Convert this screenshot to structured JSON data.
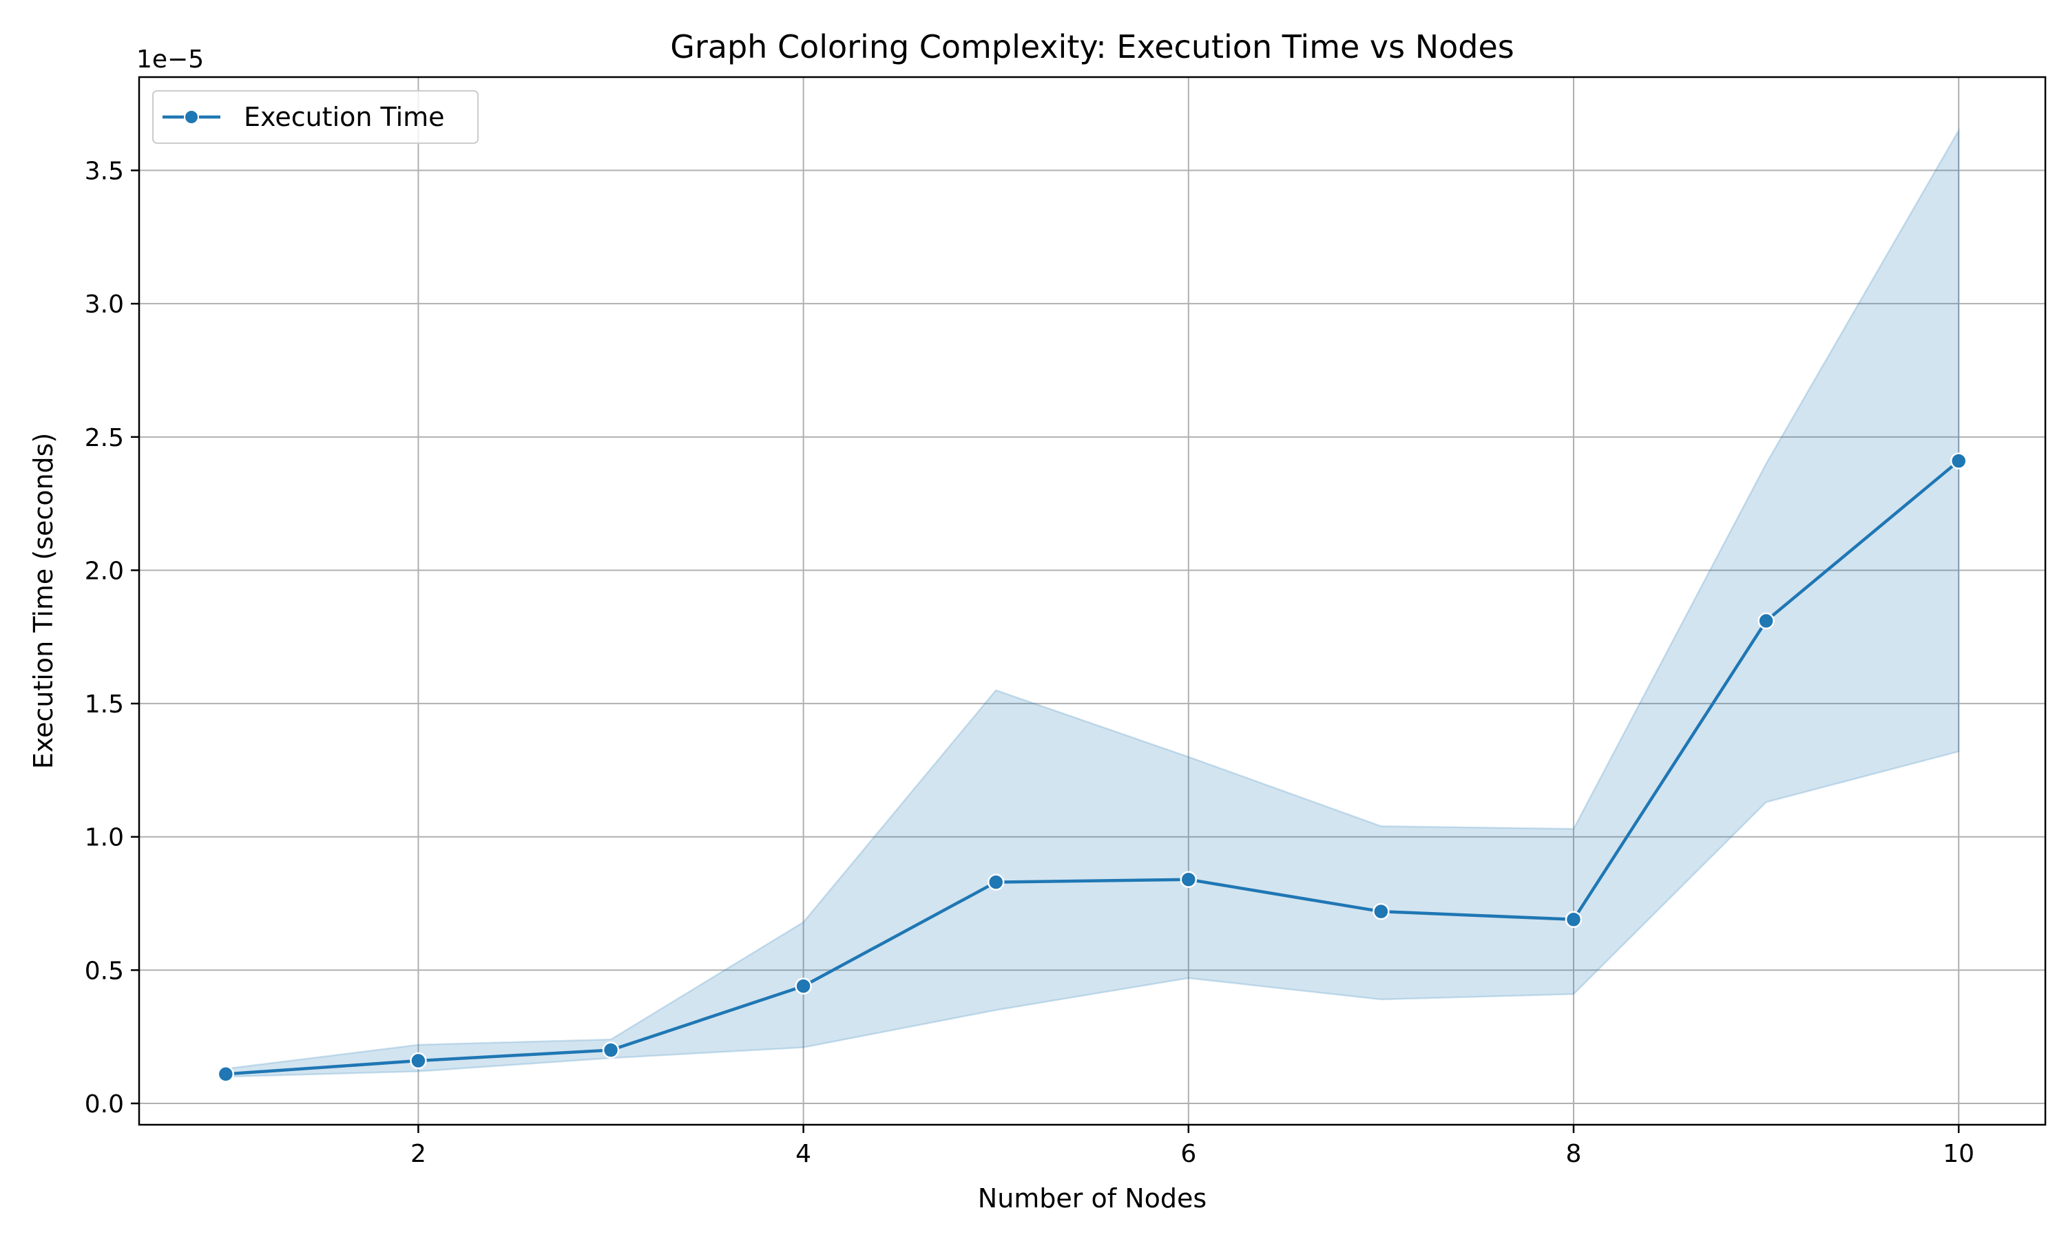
{
  "chart_data": {
    "type": "line",
    "title": "Graph Coloring Complexity: Execution Time vs Nodes",
    "xlabel": "Number of Nodes",
    "ylabel": "Execution Time (seconds)",
    "y_offset_label": "1e−5",
    "x_ticks": [
      2,
      4,
      6,
      8,
      10
    ],
    "x_tick_labels": [
      "2",
      "4",
      "6",
      "8",
      "10"
    ],
    "y_ticks": [
      0.0,
      0.5,
      1.0,
      1.5,
      2.0,
      2.5,
      3.0,
      3.5
    ],
    "y_tick_labels": [
      "0.0",
      "0.5",
      "1.0",
      "1.5",
      "2.0",
      "2.5",
      "3.0",
      "3.5"
    ],
    "xlim": [
      0.55,
      10.45
    ],
    "ylim": [
      -0.08,
      3.85
    ],
    "y_scale_note": "values shown in units of 1e-5 seconds",
    "grid": true,
    "legend_position": "upper-left",
    "series": [
      {
        "name": "Execution Time",
        "color": "#1f77b4",
        "marker": "circle",
        "x": [
          1,
          2,
          3,
          4,
          5,
          6,
          7,
          8,
          9,
          10
        ],
        "y": [
          0.11,
          0.16,
          0.2,
          0.44,
          0.83,
          0.84,
          0.72,
          0.69,
          1.81,
          2.41
        ],
        "ci_lower": [
          0.1,
          0.12,
          0.17,
          0.21,
          0.35,
          0.47,
          0.39,
          0.41,
          1.13,
          1.32
        ],
        "ci_upper": [
          0.13,
          0.22,
          0.24,
          0.68,
          1.55,
          1.3,
          1.04,
          1.03,
          2.4,
          3.65
        ]
      }
    ]
  }
}
